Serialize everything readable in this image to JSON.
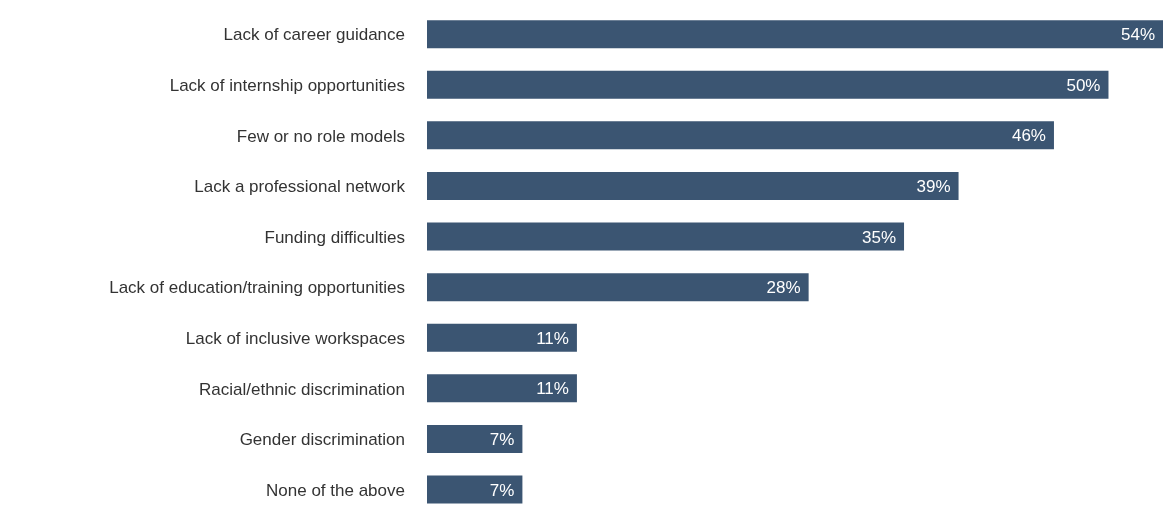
{
  "chart_data": {
    "type": "bar",
    "orientation": "horizontal",
    "categories": [
      "Lack of career guidance",
      "Lack of internship opportunities",
      "Few or no role models",
      "Lack a professional network",
      "Funding difficulties",
      "Lack of education/training opportunities",
      "Lack of inclusive workspaces",
      "Racial/ethnic discrimination",
      "Gender discrimination",
      "None of the above"
    ],
    "values": [
      54,
      50,
      46,
      39,
      35,
      28,
      11,
      11,
      7,
      7
    ],
    "value_labels": [
      "54%",
      "50%",
      "46%",
      "39%",
      "35%",
      "28%",
      "11%",
      "11%",
      "7%",
      "7%"
    ],
    "color": "#3b5572"
  }
}
